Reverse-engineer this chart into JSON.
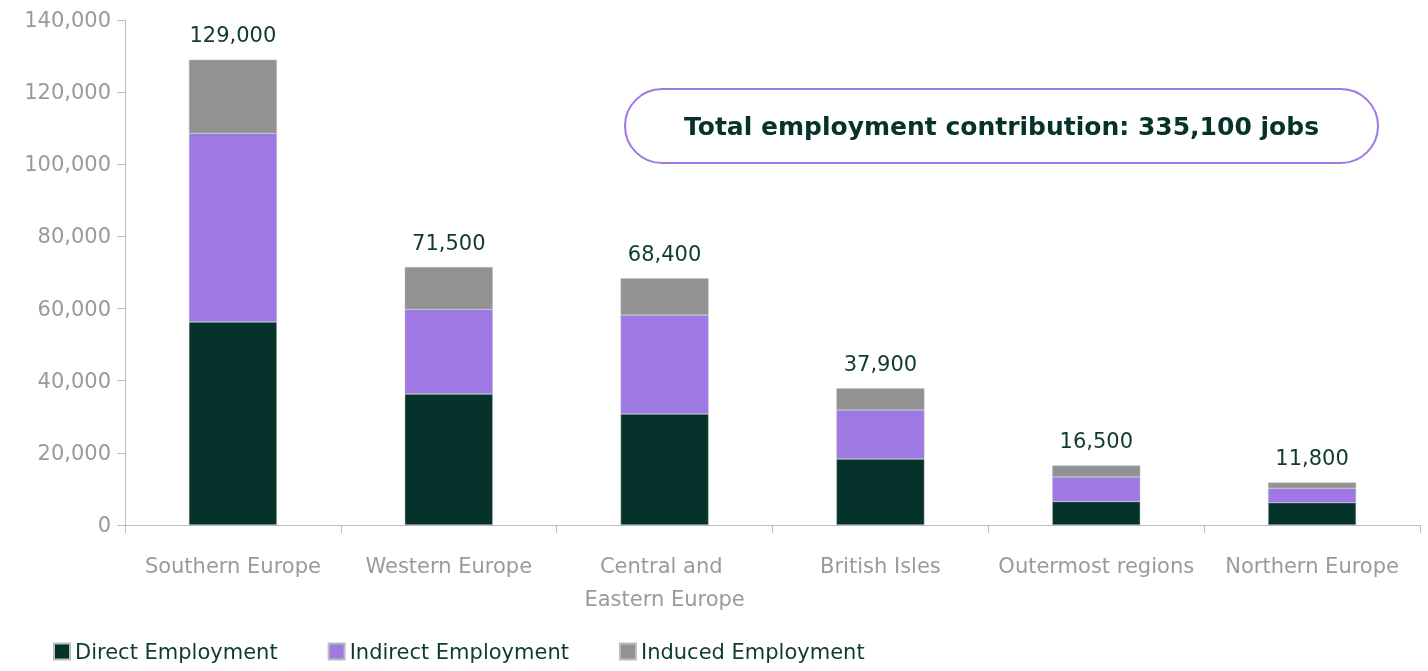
{
  "chart_data": {
    "type": "bar",
    "stacked": true,
    "categories": [
      "Southern Europe",
      "Western Europe",
      "Central and Eastern Europe",
      "British Isles",
      "Outermost regions",
      "Northern Europe"
    ],
    "series": [
      {
        "name": "Direct Employment",
        "color": "#05322a",
        "values": [
          56300,
          36300,
          30800,
          18300,
          6500,
          6200
        ]
      },
      {
        "name": "Indirect Employment",
        "color": "#9e79e3",
        "values": [
          52300,
          23500,
          27400,
          13600,
          6800,
          4000
        ]
      },
      {
        "name": "Induced Employment",
        "color": "#929292",
        "values": [
          20400,
          11700,
          10200,
          6000,
          3200,
          1600
        ]
      }
    ],
    "totals": [
      "129,000",
      "71,500",
      "68,400",
      "37,900",
      "16,500",
      "11,800"
    ],
    "ylim": [
      0,
      140000
    ],
    "yticks": [
      {
        "value": 0,
        "label": "0"
      },
      {
        "value": 20000,
        "label": "20,000"
      },
      {
        "value": 40000,
        "label": "40,000"
      },
      {
        "value": 60000,
        "label": "60,000"
      },
      {
        "value": 80000,
        "label": "80,000"
      },
      {
        "value": 100000,
        "label": "100,000"
      },
      {
        "value": 120000,
        "label": "120,000"
      },
      {
        "value": 140000,
        "label": "140,000"
      }
    ],
    "annotations": [
      "Total employment contribution: 335,100 jobs"
    ],
    "legend": "bottom left",
    "grid": false
  }
}
